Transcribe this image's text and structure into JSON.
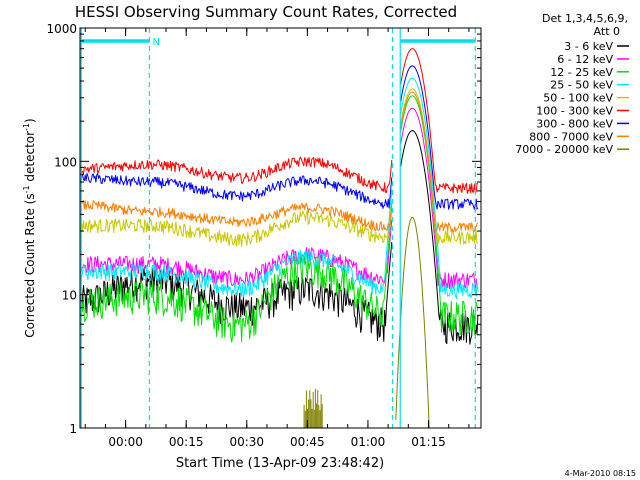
{
  "chart_data": {
    "type": "line",
    "title": "HESSI Observing Summary Count Rates, Corrected",
    "xlabel": "Start Time (13-Apr-09 23:48:42)",
    "ylabel_main": "Corrected Count Rate (s",
    "ylabel_sup1": "-1",
    "ylabel_mid": " detector",
    "ylabel_sup2": "-1",
    "ylabel_end": ")",
    "y_scale": "log",
    "ylim": [
      1,
      1000
    ],
    "xlim": [
      "23:48:42",
      "01:28:00"
    ],
    "x_ticks": [
      {
        "label": "00:00",
        "t": 11.3
      },
      {
        "label": "00:15",
        "t": 26.3
      },
      {
        "label": "00:30",
        "t": 41.3
      },
      {
        "label": "00:45",
        "t": 56.3
      },
      {
        "label": "01:00",
        "t": 71.3
      },
      {
        "label": "01:15",
        "t": 86.3
      }
    ],
    "y_ticks": [
      {
        "label": "1",
        "v": 1
      },
      {
        "label": "10",
        "v": 10
      },
      {
        "label": "100",
        "v": 100
      },
      {
        "label": "1000",
        "v": 1000
      }
    ],
    "legend_header": [
      "Det 1,3,4,5,6,9,",
      "Att 0"
    ],
    "legend_position": "right",
    "flags": [
      {
        "label": "N",
        "start": 0.5,
        "end": 17.2,
        "color": "#00e0f0"
      },
      {
        "label": "",
        "start": 79.2,
        "end": 97.9,
        "color": "#00e0f0"
      }
    ],
    "markers": {
      "solid": [
        0.3,
        79.3
      ],
      "dashed": [
        17.2,
        77.4,
        97.9
      ],
      "color": "#00e0f0"
    },
    "peak_time": 82.3,
    "series": [
      {
        "name": "3 - 6 keV",
        "color": "#000000",
        "start": 12,
        "shape": [
          9,
          13,
          8,
          11,
          6
        ],
        "peak": 170,
        "noise": 0.1
      },
      {
        "name": "6 - 12 keV",
        "color": "#ff00ff",
        "start": 17,
        "shape": [
          17,
          17,
          13,
          20,
          13
        ],
        "peak": 250,
        "noise": 0.05
      },
      {
        "name": "12 - 25 keV",
        "color": "#00e000",
        "start": 8,
        "shape": [
          9,
          10,
          6,
          16,
          7
        ],
        "peak": 310,
        "noise": 0.1
      },
      {
        "name": "25 - 50 keV",
        "color": "#00e8f8",
        "start": 15,
        "shape": [
          15,
          15,
          11,
          19,
          11
        ],
        "peak": 420,
        "noise": 0.05
      },
      {
        "name": "50 - 100 keV",
        "color": "#c8c800",
        "start": 33,
        "shape": [
          33,
          33,
          26,
          38,
          27
        ],
        "peak": 350,
        "noise": 0.04
      },
      {
        "name": "100 - 300 keV",
        "color": "#ff0000",
        "start": 88,
        "shape": [
          88,
          95,
          75,
          100,
          63
        ],
        "peak": 700,
        "noise": 0.03
      },
      {
        "name": "300 - 800 keV",
        "color": "#0000ff",
        "start": 75,
        "shape": [
          75,
          70,
          55,
          72,
          48
        ],
        "peak": 520,
        "noise": 0.03
      },
      {
        "name": "800 - 7000 keV",
        "color": "#ff8000",
        "start": 47,
        "shape": [
          47,
          42,
          35,
          45,
          32
        ],
        "peak": 330,
        "noise": 0.03
      },
      {
        "name": "7000 - 20000 keV",
        "color": "#808000",
        "start": 0,
        "shape": [
          0,
          0,
          0,
          0,
          0
        ],
        "peak": 38,
        "noise": 0.0,
        "burst": [
          55.5,
          60.0,
          1.25,
          2.0
        ]
      }
    ],
    "footer_date": "4-Mar-2010 08:15"
  }
}
